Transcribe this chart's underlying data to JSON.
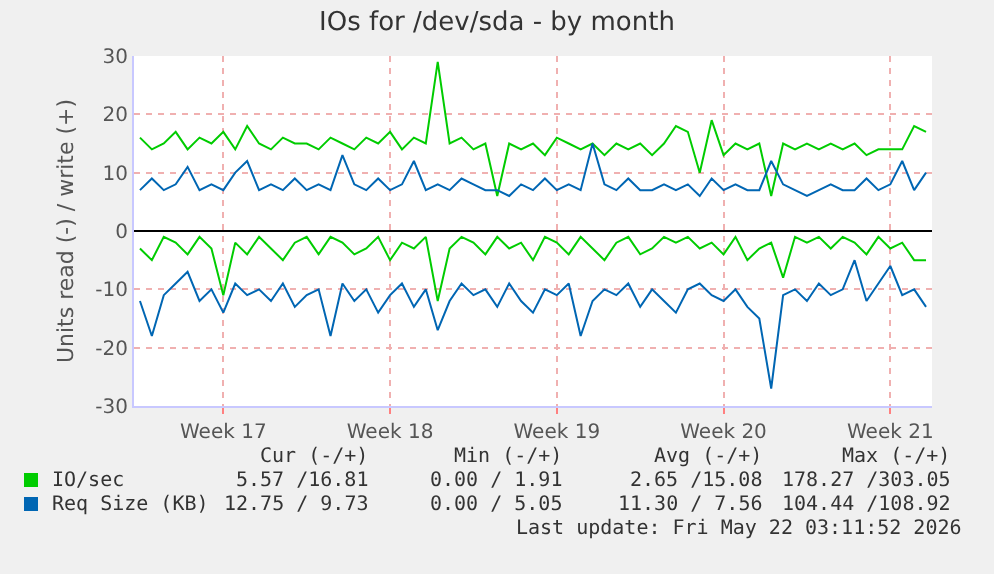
{
  "chart_data": {
    "type": "line",
    "title": "IOs for /dev/sda - by month",
    "ylabel": "Units read (-) / write (+)",
    "categories": [
      null,
      null,
      null,
      null,
      null,
      null,
      null,
      "Week 17",
      null,
      null,
      null,
      null,
      null,
      null,
      null,
      null,
      null,
      null,
      null,
      null,
      null,
      "Week 18",
      null,
      null,
      null,
      null,
      null,
      null,
      null,
      null,
      null,
      null,
      null,
      null,
      null,
      "Week 19",
      null,
      null,
      null,
      null,
      null,
      null,
      null,
      null,
      null,
      null,
      null,
      null,
      null,
      "Week 20",
      null,
      null,
      null,
      null,
      null,
      null,
      null,
      null,
      null,
      null,
      null,
      null,
      null,
      "Week 21",
      null,
      null,
      null
    ],
    "series": [
      {
        "name": "IO/sec",
        "color": "#00cc00",
        "values": [
          16,
          14,
          15,
          17,
          14,
          16,
          15,
          17,
          14,
          18,
          15,
          14,
          16,
          15,
          15,
          14,
          16,
          15,
          14,
          16,
          15,
          17,
          14,
          16,
          15,
          29,
          15,
          16,
          14,
          15,
          6,
          15,
          14,
          15,
          13,
          16,
          15,
          14,
          15,
          13,
          15,
          14,
          15,
          13,
          15,
          18,
          17,
          10,
          19,
          13,
          15,
          14,
          15,
          6,
          15,
          14,
          15,
          14,
          15,
          14,
          15,
          13,
          14,
          14,
          14,
          18,
          17
        ]
      },
      {
        "color": "#00cc00",
        "values": [
          -3,
          -5,
          -1,
          -2,
          -4,
          -1,
          -3,
          -11,
          -2,
          -4,
          -1,
          -3,
          -5,
          -2,
          -1,
          -4,
          -1,
          -2,
          -4,
          -3,
          -1,
          -5,
          -2,
          -3,
          -1,
          -12,
          -3,
          -1,
          -2,
          -4,
          -1,
          -3,
          -2,
          -5,
          -1,
          -2,
          -4,
          -1,
          -3,
          -5,
          -2,
          -1,
          -4,
          -3,
          -1,
          -2,
          -1,
          -3,
          -2,
          -4,
          -1,
          -5,
          -3,
          -2,
          -8,
          -1,
          -2,
          -1,
          -3,
          -1,
          -2,
          -4,
          -1,
          -3,
          -2,
          -5,
          -5
        ]
      },
      {
        "name": "Req Size (KB)",
        "color": "#0066b3",
        "values": [
          7,
          9,
          7,
          8,
          11,
          7,
          8,
          7,
          10,
          12,
          7,
          8,
          7,
          9,
          7,
          8,
          7,
          13,
          8,
          7,
          9,
          7,
          8,
          12,
          7,
          8,
          7,
          9,
          8,
          7,
          7,
          6,
          8,
          7,
          9,
          7,
          8,
          7,
          15,
          8,
          7,
          9,
          7,
          7,
          8,
          7,
          8,
          6,
          9,
          7,
          8,
          7,
          7,
          12,
          8,
          7,
          6,
          7,
          8,
          7,
          7,
          9,
          7,
          8,
          12,
          7,
          10
        ]
      },
      {
        "color": "#0066b3",
        "values": [
          -12,
          -18,
          -11,
          -9,
          -7,
          -12,
          -10,
          -14,
          -9,
          -11,
          -10,
          -12,
          -9,
          -13,
          -11,
          -10,
          -18,
          -9,
          -12,
          -10,
          -14,
          -11,
          -9,
          -13,
          -10,
          -17,
          -12,
          -9,
          -11,
          -10,
          -13,
          -9,
          -12,
          -14,
          -10,
          -11,
          -9,
          -18,
          -12,
          -10,
          -11,
          -9,
          -13,
          -10,
          -12,
          -14,
          -10,
          -9,
          -11,
          -12,
          -10,
          -13,
          -15,
          -27,
          -11,
          -10,
          -12,
          -9,
          -11,
          -10,
          -5,
          -12,
          -9,
          -6,
          -11,
          -10,
          -13
        ]
      }
    ],
    "ylim": [
      -30,
      30
    ],
    "yticks": [
      -30,
      -20,
      -10,
      0,
      10,
      20,
      30
    ],
    "ref_lines": [
      {
        "axis": "y",
        "value": 0,
        "color": "#000000"
      }
    ],
    "grid": true,
    "legend": "bottom",
    "marker": "none",
    "line_style": "solid",
    "annotations": [
      "Cur (-/+)",
      "Min (-/+)",
      "Avg (-/+)",
      "Max (-/+)",
      "5.57 /16.81",
      "0.00 / 1.91",
      "2.65 /15.08",
      "178.27 /303.05",
      "12.75 / 9.73",
      "0.00 / 5.05",
      "11.30 / 7.56",
      "104.44 /108.92",
      "Last update: Fri May 22 03:11:52 2026"
    ]
  }
}
